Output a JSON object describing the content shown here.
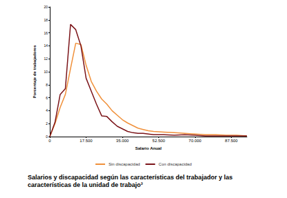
{
  "chart_data": {
    "type": "line",
    "x_label": "Salario Anual",
    "y_label": "Porcentaje de trabajadores",
    "caption": "Salarios y discapacidad según las características del trabajador y las características de la unidad de trabajo³",
    "x": [
      0,
      2500,
      5000,
      7500,
      10000,
      12500,
      15000,
      17500,
      20000,
      22500,
      25000,
      27500,
      30000,
      32500,
      35000,
      37500,
      40000,
      42500,
      45000,
      47500,
      50000,
      55000,
      60000,
      65000,
      70000,
      75000,
      80000,
      85000,
      90000,
      95000
    ],
    "series": [
      {
        "name": "Sin discapacidad",
        "color": "#f0903a",
        "values": [
          0,
          2,
          4.5,
          6.5,
          10.5,
          14.4,
          14.2,
          11,
          8.5,
          7,
          5.8,
          5,
          4,
          3.3,
          2.6,
          2.1,
          1.7,
          1.3,
          1.1,
          0.9,
          0.8,
          0.7,
          0.6,
          0.5,
          0.4,
          0.3,
          0.3,
          0.2,
          0.2,
          0.1
        ]
      },
      {
        "name": "Con discapacidad",
        "color": "#7b1419",
        "values": [
          0,
          2.2,
          6.5,
          7.4,
          17.3,
          16.5,
          14,
          9,
          7,
          5,
          3.2,
          3.1,
          2.3,
          1.6,
          1.2,
          0.8,
          0.6,
          0.5,
          0.5,
          0.4,
          0.3,
          0.3,
          0.2,
          0.3,
          0.2,
          0.1,
          0.1,
          0.1,
          0.1,
          0.1
        ]
      }
    ],
    "xlim": [
      0,
      95000
    ],
    "xticks": [
      0,
      {
        "value": 17500,
        "label": "17.500"
      },
      {
        "value": 35000,
        "label": "35.000"
      },
      {
        "value": 52500,
        "label": "52.500"
      },
      {
        "value": 70000,
        "label": "70.000"
      },
      {
        "value": 87500,
        "label": "87.500"
      }
    ],
    "ylim": [
      0,
      20
    ],
    "yticks": [
      0,
      2,
      4,
      6,
      8,
      10,
      12,
      14,
      16,
      18,
      20
    ],
    "grid": false,
    "legend": "bottom",
    "marker": "none"
  }
}
